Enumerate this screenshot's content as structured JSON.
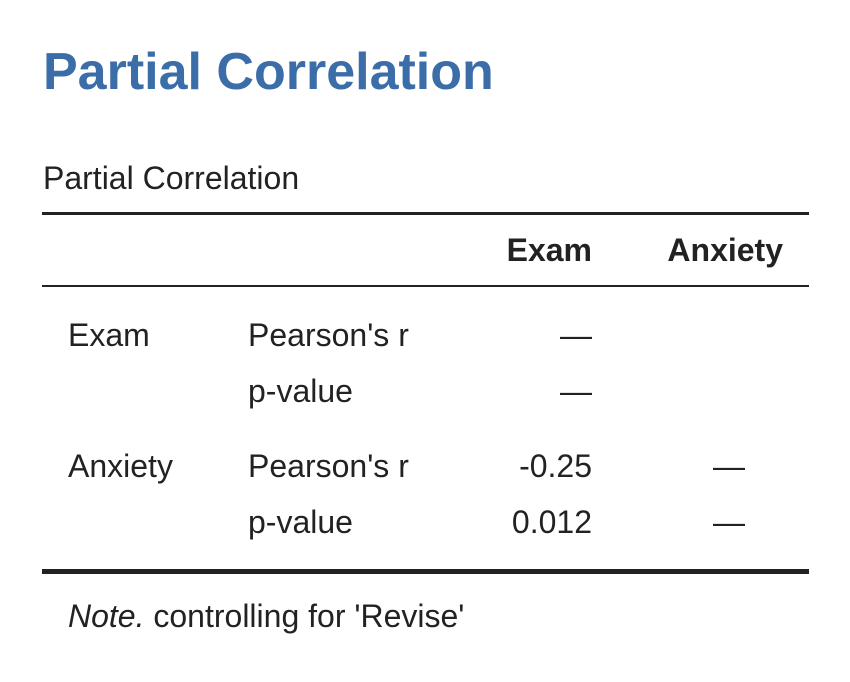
{
  "header": {
    "title": "Partial Correlation"
  },
  "table": {
    "caption": "Partial Correlation",
    "columns": [
      "Exam",
      "Anxiety"
    ],
    "groups": [
      {
        "variable": "Exam",
        "rows": [
          {
            "stat": "Pearson's r",
            "cells": [
              "—"
            ]
          },
          {
            "stat": "p-value",
            "cells": [
              "—"
            ]
          }
        ]
      },
      {
        "variable": "Anxiety",
        "rows": [
          {
            "stat": "Pearson's r",
            "cells": [
              -0.25,
              "—"
            ]
          },
          {
            "stat": "p-value",
            "cells": [
              0.012,
              "—"
            ]
          }
        ]
      }
    ],
    "note": {
      "label": "Note.",
      "text": "controlling for 'Revise'"
    }
  }
}
